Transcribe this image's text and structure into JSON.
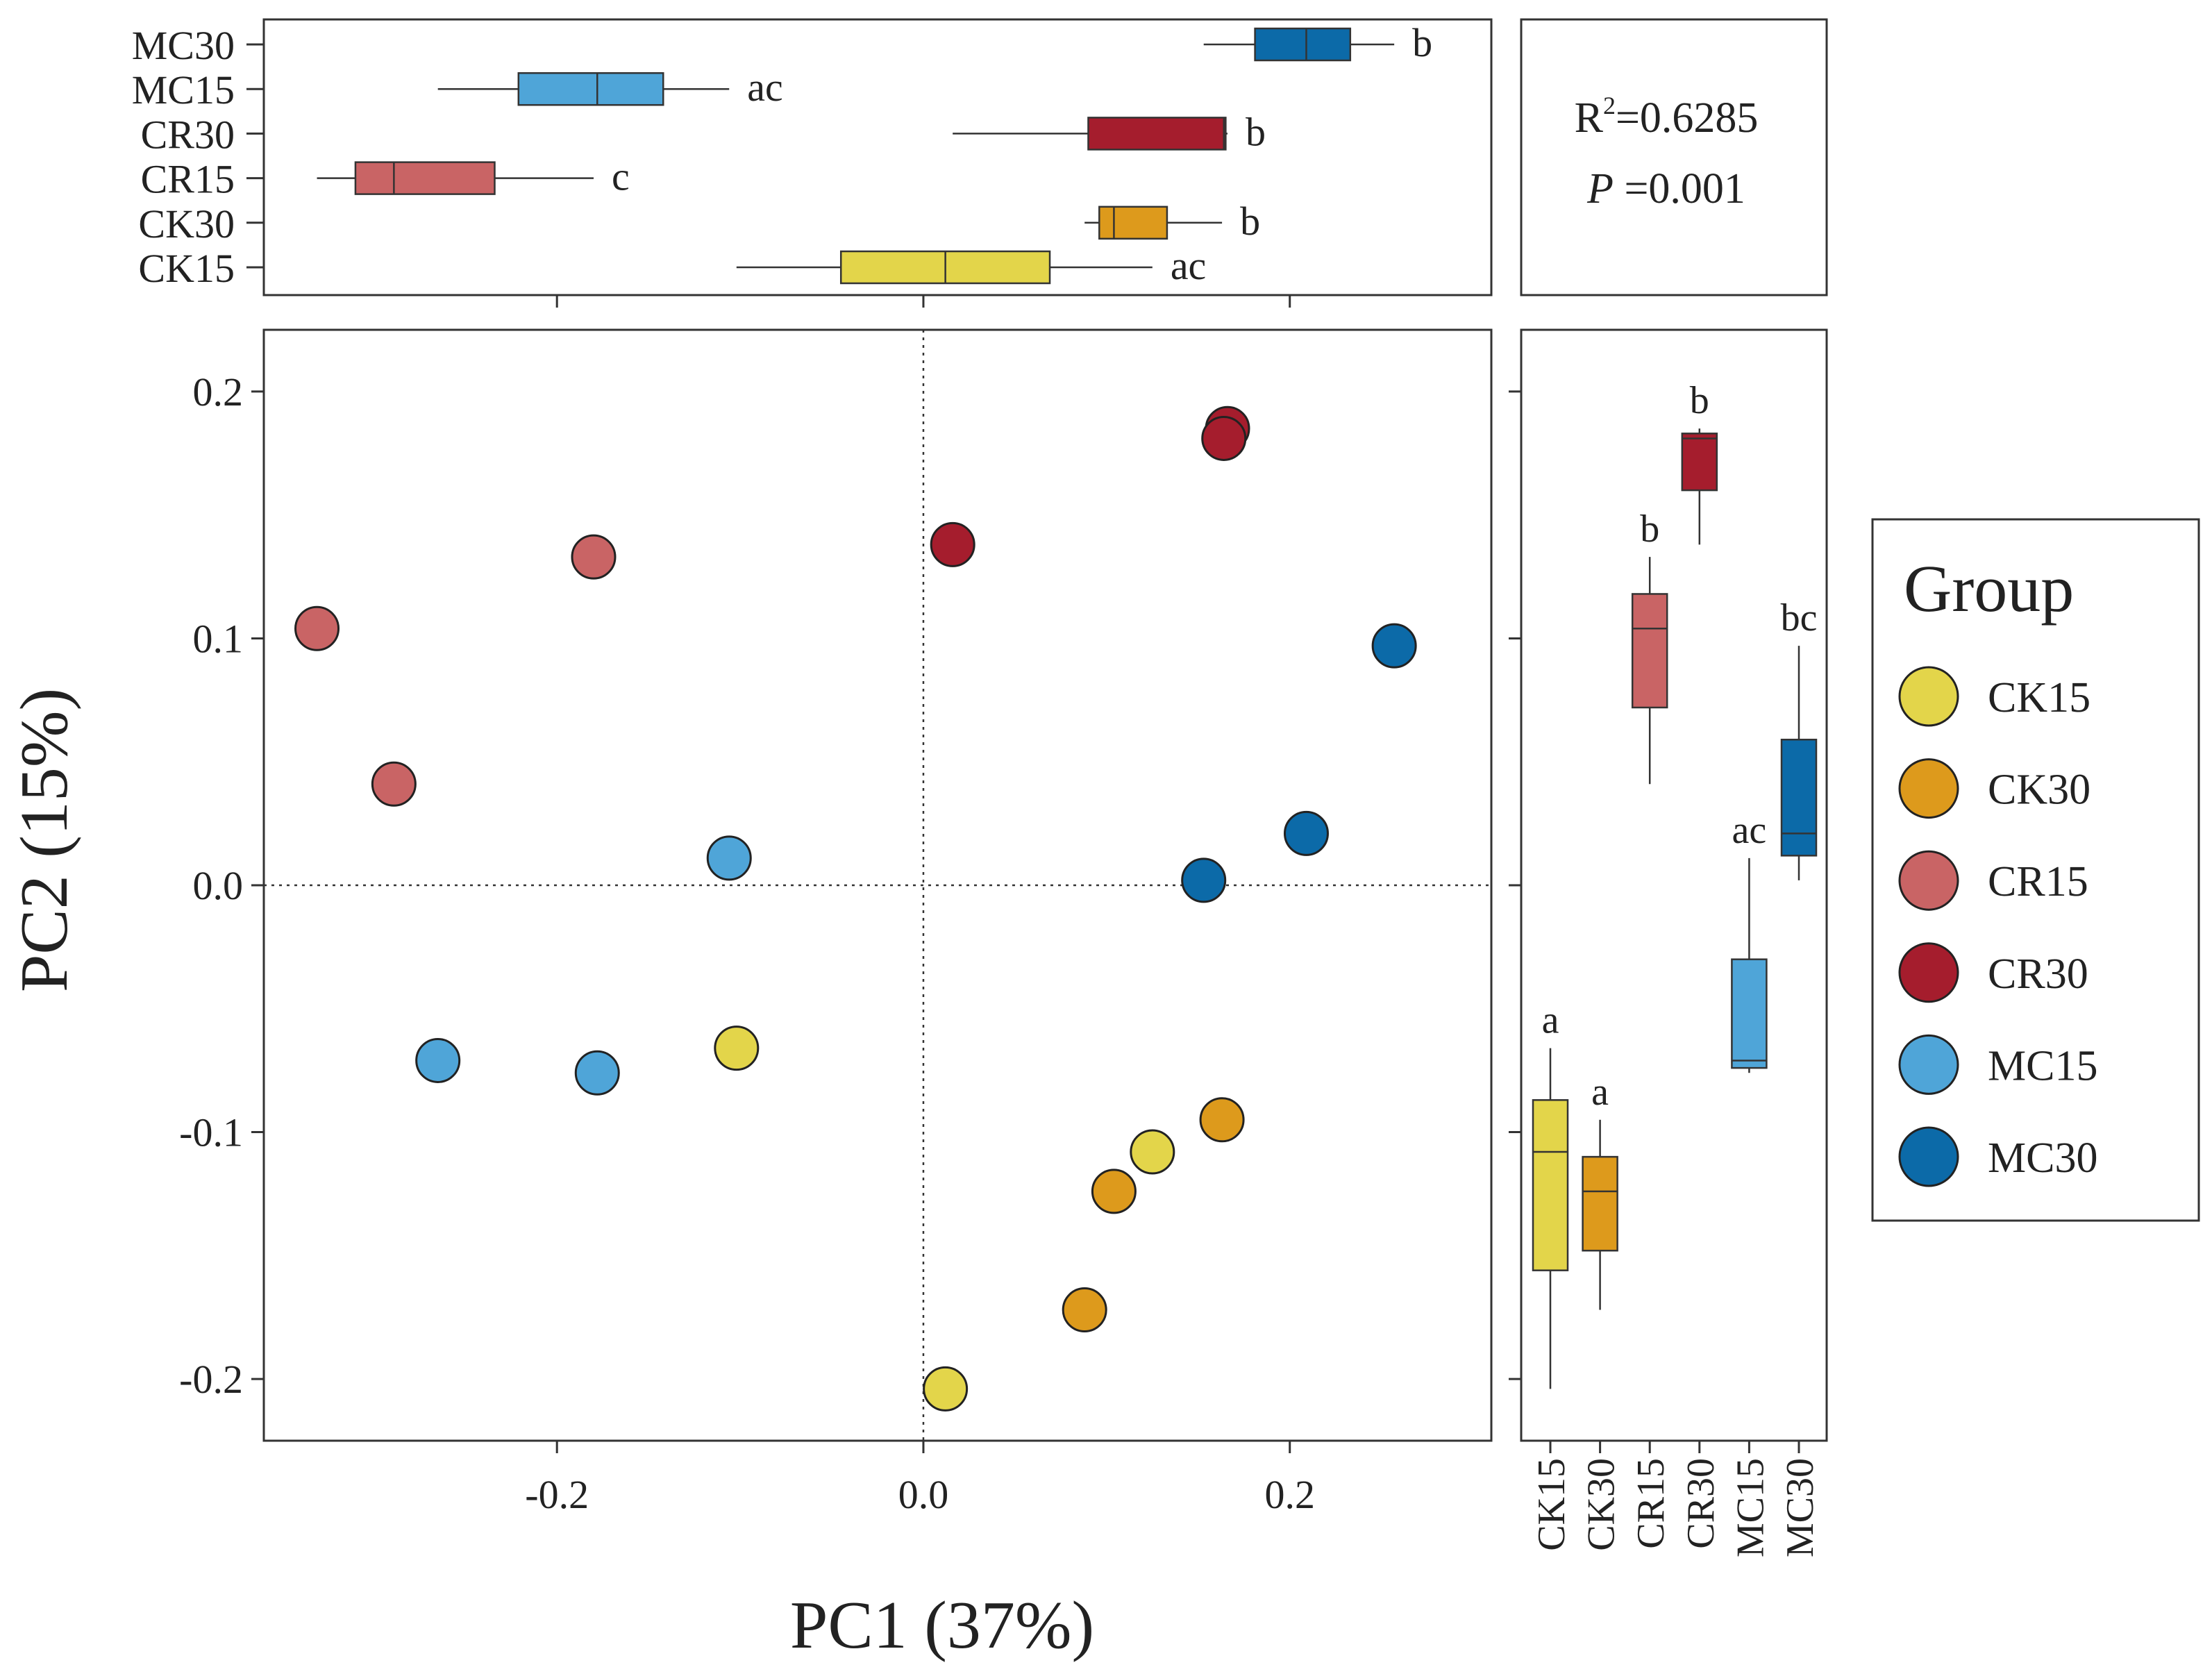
{
  "colors": {
    "CK15": "#e3d54a",
    "CK30": "#dd9a1c",
    "CR15": "#c96465",
    "CR30": "#a51d2d",
    "MC15": "#4fa5d8",
    "MC30": "#0c6aa8"
  },
  "chart_data": [
    {
      "type": "scatter",
      "title": "",
      "xlabel": "PC1 (37%)",
      "ylabel": "PC2 (15%)",
      "xlim": [
        -0.36,
        0.31
      ],
      "ylim": [
        -0.225,
        0.225
      ],
      "xticks": [
        "-0.2",
        "0.0",
        "0.2"
      ],
      "yticks": [
        "-0.2",
        "-0.1",
        "0.0",
        "0.1",
        "0.2"
      ],
      "zero_lines": true,
      "legend": {
        "title": "Group",
        "position": "right",
        "entries": [
          "CK15",
          "CK30",
          "CR15",
          "CR30",
          "MC15",
          "MC30"
        ]
      },
      "series": [
        {
          "name": "CK15",
          "points": [
            [
              0.012,
              -0.204
            ],
            [
              -0.102,
              -0.066
            ],
            [
              0.125,
              -0.108
            ]
          ]
        },
        {
          "name": "CK30",
          "points": [
            [
              0.088,
              -0.172
            ],
            [
              0.104,
              -0.124
            ],
            [
              0.163,
              -0.095
            ]
          ]
        },
        {
          "name": "CR15",
          "points": [
            [
              -0.331,
              0.104
            ],
            [
              -0.289,
              0.041
            ],
            [
              -0.18,
              0.133
            ]
          ]
        },
        {
          "name": "CR30",
          "points": [
            [
              0.016,
              0.138
            ],
            [
              0.166,
              0.185
            ],
            [
              0.164,
              0.181
            ]
          ]
        },
        {
          "name": "MC15",
          "points": [
            [
              -0.106,
              0.011
            ],
            [
              -0.265,
              -0.071
            ],
            [
              -0.178,
              -0.076
            ]
          ]
        },
        {
          "name": "MC30",
          "points": [
            [
              0.153,
              0.002
            ],
            [
              0.209,
              0.021
            ],
            [
              0.257,
              0.097
            ]
          ]
        }
      ]
    },
    {
      "type": "boxplot",
      "orientation": "horizontal",
      "axis": "PC1",
      "categories": [
        "MC30",
        "MC15",
        "CR30",
        "CR15",
        "CK30",
        "CK15"
      ],
      "boxes": [
        {
          "group": "MC30",
          "min": 0.153,
          "q1": 0.181,
          "median": 0.209,
          "q3": 0.233,
          "max": 0.257,
          "letter": "b"
        },
        {
          "group": "MC15",
          "min": -0.265,
          "q1": -0.221,
          "median": -0.178,
          "q3": -0.142,
          "max": -0.106,
          "letter": "ac"
        },
        {
          "group": "CR30",
          "min": 0.016,
          "q1": 0.09,
          "median": 0.164,
          "q3": 0.165,
          "max": 0.166,
          "letter": "b"
        },
        {
          "group": "CR15",
          "min": -0.331,
          "q1": -0.31,
          "median": -0.289,
          "q3": -0.234,
          "max": -0.18,
          "letter": "c"
        },
        {
          "group": "CK30",
          "min": 0.088,
          "q1": 0.096,
          "median": 0.104,
          "q3": 0.133,
          "max": 0.163,
          "letter": "b"
        },
        {
          "group": "CK15",
          "min": -0.102,
          "q1": -0.045,
          "median": 0.012,
          "q3": 0.069,
          "max": 0.125,
          "letter": "ac"
        }
      ]
    },
    {
      "type": "boxplot",
      "orientation": "vertical",
      "axis": "PC2",
      "categories": [
        "CK15",
        "CK30",
        "CR15",
        "CR30",
        "MC15",
        "MC30"
      ],
      "boxes": [
        {
          "group": "CK15",
          "min": -0.204,
          "q1": -0.156,
          "median": -0.108,
          "q3": -0.087,
          "max": -0.066,
          "letter": "a"
        },
        {
          "group": "CK30",
          "min": -0.172,
          "q1": -0.148,
          "median": -0.124,
          "q3": -0.11,
          "max": -0.095,
          "letter": "a"
        },
        {
          "group": "CR15",
          "min": 0.041,
          "q1": 0.072,
          "median": 0.104,
          "q3": 0.118,
          "max": 0.133,
          "letter": "b"
        },
        {
          "group": "CR30",
          "min": 0.138,
          "q1": 0.16,
          "median": 0.181,
          "q3": 0.183,
          "max": 0.185,
          "letter": "b"
        },
        {
          "group": "MC15",
          "min": -0.076,
          "q1": -0.074,
          "median": -0.071,
          "q3": -0.03,
          "max": 0.011,
          "letter": "ac"
        },
        {
          "group": "MC30",
          "min": 0.002,
          "q1": 0.012,
          "median": 0.021,
          "q3": 0.059,
          "max": 0.097,
          "letter": "bc"
        }
      ]
    }
  ],
  "stats": {
    "r2_label": "R",
    "r2_sup": "2",
    "r2_value": "=0.6285",
    "p_label": "P",
    "p_value": " =0.001"
  }
}
